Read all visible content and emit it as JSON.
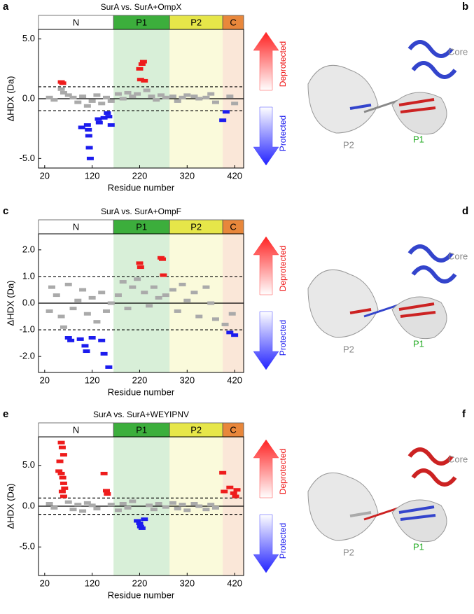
{
  "chart_data": [
    {
      "type": "scatter",
      "panel": "a",
      "title": "SurA vs. SurA+OmpX",
      "xlabel": "Residue number",
      "ylabel": "ΔHDX (Da)",
      "xlim": [
        7,
        439
      ],
      "xticks": [
        20,
        120,
        220,
        320,
        420
      ],
      "ylim": [
        -5.8,
        5.8
      ],
      "yticks": [
        {
          "value": -5,
          "label": "-5.0"
        },
        {
          "value": 0,
          "label": "0.0"
        },
        {
          "value": 5,
          "label": "5.0"
        }
      ],
      "hlines": [
        {
          "value": 0,
          "style": "solid"
        },
        {
          "value": 1,
          "style": "dashed"
        },
        {
          "value": -1,
          "style": "dashed"
        }
      ],
      "regions": [
        {
          "label": "N",
          "start": 7,
          "end": 165,
          "color": "#ffffff"
        },
        {
          "label": "P1",
          "start": 165,
          "end": 283,
          "color": "#3cae3c"
        },
        {
          "label": "P2",
          "start": 283,
          "end": 395,
          "color": "#e6e649"
        },
        {
          "label": "C",
          "start": 395,
          "end": 439,
          "color": "#e8873b"
        }
      ],
      "arrow_labels": [
        "Deprotected",
        "Protected"
      ],
      "series": [
        {
          "color": "#aaaaaa",
          "x": [
            30,
            40,
            55,
            60,
            70,
            80,
            90,
            100,
            110,
            120,
            130,
            140,
            150,
            160,
            175,
            185,
            195,
            205,
            215,
            235,
            245,
            255,
            265,
            275,
            290,
            300,
            310,
            320,
            335,
            345,
            360,
            370,
            380,
            410,
            420
          ],
          "values": [
            0.1,
            -0.1,
            0.8,
            0.5,
            0.3,
            0.1,
            -0.3,
            0.2,
            -0.6,
            -0.2,
            0.3,
            -0.4,
            0.1,
            -0.2,
            0.4,
            0.0,
            0.5,
            0.2,
            0.4,
            0.7,
            0.2,
            -0.1,
            0.3,
            0.1,
            0.2,
            -0.2,
            0.1,
            0.3,
            0.2,
            0.0,
            0.1,
            0.4,
            -0.3,
            0.2,
            -0.4
          ]
        },
        {
          "color": "#ee1c1c",
          "x": [
            55,
            58,
            220,
            225,
            228,
            222,
            230
          ],
          "values": [
            1.4,
            1.3,
            2.5,
            2.9,
            3.1,
            1.6,
            1.5
          ]
        },
        {
          "color": "#1c1cee",
          "x": [
            98,
            110,
            112,
            113,
            114,
            116,
            133,
            135,
            145,
            152,
            155,
            160,
            395,
            402
          ],
          "values": [
            -2.4,
            -2.2,
            -2.6,
            -3.1,
            -4.1,
            -5.0,
            -1.7,
            -2.0,
            -1.6,
            -1.2,
            -1.5,
            -2.2,
            -1.8,
            -1.1
          ]
        }
      ]
    },
    {
      "type": "scatter",
      "panel": "c",
      "title": "SurA vs. SurA+OmpF",
      "xlabel": "Residue number",
      "ylabel": "ΔHDX (Da)",
      "xlim": [
        7,
        439
      ],
      "xticks": [
        20,
        120,
        220,
        320,
        420
      ],
      "ylim": [
        -2.6,
        2.6
      ],
      "yticks": [
        {
          "value": -2,
          "label": "-2.0"
        },
        {
          "value": -1,
          "label": "-1.0"
        },
        {
          "value": 0,
          "label": "0.0"
        },
        {
          "value": 1,
          "label": "1.0"
        },
        {
          "value": 2,
          "label": "2.0"
        }
      ],
      "hlines": [
        {
          "value": 0,
          "style": "solid"
        },
        {
          "value": 1,
          "style": "dashed"
        },
        {
          "value": -1,
          "style": "dashed"
        }
      ],
      "regions": [
        {
          "label": "N",
          "start": 7,
          "end": 165,
          "color": "#ffffff"
        },
        {
          "label": "P1",
          "start": 165,
          "end": 283,
          "color": "#3cae3c"
        },
        {
          "label": "P2",
          "start": 283,
          "end": 395,
          "color": "#e6e649"
        },
        {
          "label": "C",
          "start": 395,
          "end": 439,
          "color": "#e8873b"
        }
      ],
      "arrow_labels": [
        "Deprotected",
        "Protected"
      ],
      "series": [
        {
          "color": "#aaaaaa",
          "x": [
            30,
            35,
            45,
            55,
            60,
            70,
            80,
            90,
            100,
            110,
            120,
            130,
            140,
            150,
            160,
            175,
            185,
            195,
            205,
            215,
            230,
            240,
            250,
            260,
            275,
            290,
            300,
            310,
            320,
            335,
            345,
            360,
            370,
            380,
            400,
            415
          ],
          "values": [
            -0.3,
            0.6,
            0.3,
            -0.5,
            -0.9,
            0.7,
            -0.2,
            0.1,
            0.5,
            -0.4,
            0.2,
            -0.7,
            0.4,
            -0.3,
            0.0,
            0.3,
            0.8,
            -0.2,
            0.6,
            0.9,
            0.4,
            -0.1,
            0.6,
            0.2,
            0.3,
            0.5,
            -0.3,
            0.7,
            0.1,
            0.4,
            -0.5,
            0.6,
            0.0,
            -0.6,
            -0.8,
            -0.4
          ]
        },
        {
          "color": "#ee1c1c",
          "x": [
            220,
            222,
            265,
            268,
            270
          ],
          "values": [
            1.5,
            1.35,
            1.7,
            1.65,
            1.05
          ]
        },
        {
          "color": "#1c1cee",
          "x": [
            70,
            75,
            95,
            105,
            108,
            120,
            140,
            145,
            155,
            410,
            420
          ],
          "values": [
            -1.3,
            -1.4,
            -1.35,
            -1.6,
            -1.8,
            -1.3,
            -1.4,
            -1.9,
            -2.4,
            -1.1,
            -1.2
          ]
        }
      ]
    },
    {
      "type": "scatter",
      "panel": "e",
      "title": "SurA vs. SurA+WEYIPNV",
      "xlabel": "Residue number",
      "ylabel": "ΔHDX (Da)",
      "xlim": [
        7,
        439
      ],
      "xticks": [
        20,
        120,
        220,
        320,
        420
      ],
      "ylim": [
        -8.5,
        8.5
      ],
      "yticks": [
        {
          "value": -5,
          "label": "-5.0"
        },
        {
          "value": 0,
          "label": "0.0"
        },
        {
          "value": 5,
          "label": "5.0"
        }
      ],
      "hlines": [
        {
          "value": 0,
          "style": "solid"
        },
        {
          "value": 1,
          "style": "dashed"
        },
        {
          "value": -1,
          "style": "dashed"
        }
      ],
      "regions": [
        {
          "label": "N",
          "start": 7,
          "end": 165,
          "color": "#ffffff"
        },
        {
          "label": "P1",
          "start": 165,
          "end": 283,
          "color": "#3cae3c"
        },
        {
          "label": "P2",
          "start": 283,
          "end": 395,
          "color": "#e6e649"
        },
        {
          "label": "C",
          "start": 395,
          "end": 439,
          "color": "#e8873b"
        }
      ],
      "arrow_labels": [
        "Deprotected",
        "Protected"
      ],
      "series": [
        {
          "color": "#aaaaaa",
          "x": [
            30,
            40,
            70,
            80,
            90,
            100,
            110,
            120,
            130,
            160,
            175,
            185,
            195,
            205,
            240,
            250,
            260,
            275,
            290,
            300,
            310,
            320,
            335,
            345,
            360,
            370,
            380
          ],
          "values": [
            0.3,
            -0.2,
            0.5,
            -0.4,
            0.2,
            -0.6,
            0.4,
            0.1,
            -0.3,
            0.2,
            -0.5,
            0.3,
            -0.2,
            0.6,
            0.1,
            -0.4,
            0.3,
            -0.1,
            0.4,
            -0.3,
            0.2,
            -0.5,
            0.3,
            0.0,
            -0.4,
            0.2,
            -0.2
          ]
        },
        {
          "color": "#ee1c1c",
          "x": [
            55,
            57,
            60,
            52,
            50,
            55,
            58,
            60,
            62,
            57,
            60,
            145,
            150,
            152,
            395,
            398,
            410,
            418,
            422,
            425
          ],
          "values": [
            7.8,
            7.2,
            6.3,
            5.5,
            4.3,
            4.0,
            3.5,
            2.8,
            2.2,
            1.8,
            1.2,
            4.0,
            1.9,
            1.5,
            4.1,
            1.8,
            2.3,
            1.6,
            1.2,
            2.0
          ]
        },
        {
          "color": "#1c1cee",
          "x": [
            215,
            220,
            222,
            225,
            230
          ],
          "values": [
            -1.8,
            -2.1,
            -2.5,
            -2.7,
            -1.6
          ]
        }
      ]
    }
  ],
  "structures": [
    {
      "panel": "b",
      "labels": [
        "Core",
        "P2",
        "P1"
      ]
    },
    {
      "panel": "d",
      "labels": [
        "Core",
        "P2",
        "P1"
      ]
    },
    {
      "panel": "f",
      "labels": [
        "Core",
        "P2",
        "P1"
      ]
    }
  ]
}
